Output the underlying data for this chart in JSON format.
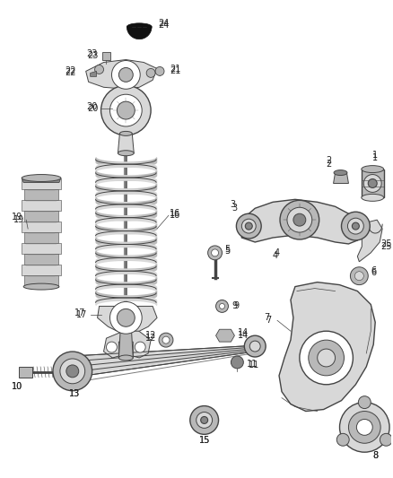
{
  "bg_color": "#ffffff",
  "line_color": "#444444",
  "label_color": "#222222",
  "fig_width": 4.38,
  "fig_height": 5.33,
  "dpi": 100,
  "gray_light": "#d8d8d8",
  "gray_med": "#b8b8b8",
  "gray_dark": "#888888",
  "gray_fill": "#cccccc",
  "white": "#ffffff",
  "black": "#111111"
}
